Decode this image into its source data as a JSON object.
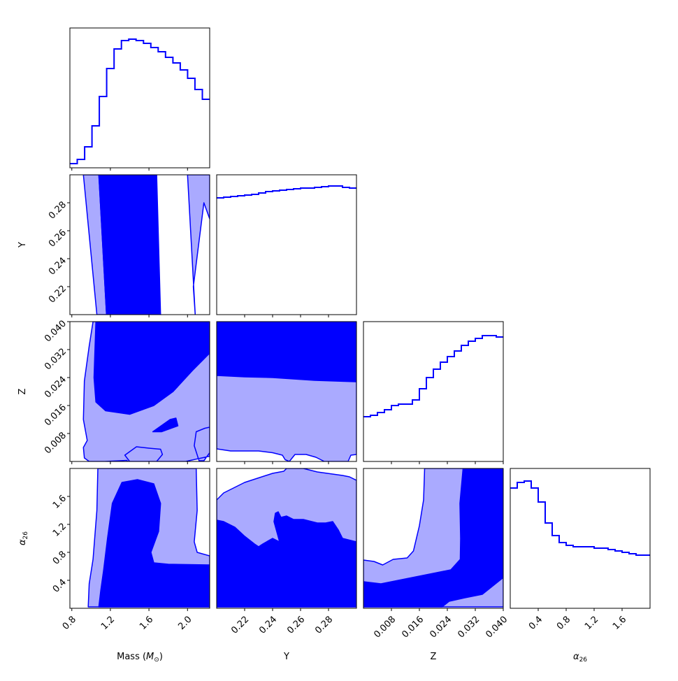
{
  "chart_data": {
    "type": "corner",
    "colors": {
      "line": "#0000ff",
      "inner": "#0000ff",
      "outer": "#aaaaff"
    },
    "parameters": [
      {
        "key": "mass",
        "label": "Mass (M⊙)",
        "range": [
          0.78,
          2.23
        ],
        "ticks": [
          0.8,
          1.2,
          1.6,
          2.0
        ],
        "tick_labels": [
          "0.8",
          "1.2",
          "1.6",
          "2.0"
        ]
      },
      {
        "key": "y",
        "label": "Y",
        "range": [
          0.2,
          0.3
        ],
        "ticks": [
          0.22,
          0.24,
          0.26,
          0.28
        ],
        "tick_labels": [
          "0.22",
          "0.24",
          "0.26",
          "0.28"
        ]
      },
      {
        "key": "z",
        "label": "Z",
        "range": [
          0.0,
          0.04
        ],
        "ticks": [
          0.008,
          0.016,
          0.024,
          0.032,
          0.04
        ],
        "tick_labels": [
          "0.008",
          "0.016",
          "0.024",
          "0.032",
          "0.040"
        ]
      },
      {
        "key": "alpha",
        "label": "α26",
        "range": [
          0.0,
          2.0
        ],
        "ticks": [
          0.4,
          0.8,
          1.2,
          1.6
        ],
        "tick_labels": [
          "0.4",
          "0.8",
          "1.2",
          "1.6"
        ]
      }
    ],
    "histograms": [
      {
        "param": "mass",
        "counts": [
          0.03,
          0.06,
          0.15,
          0.3,
          0.51,
          0.71,
          0.85,
          0.91,
          0.92,
          0.91,
          0.89,
          0.86,
          0.83,
          0.79,
          0.75,
          0.7,
          0.64,
          0.56,
          0.49
        ]
      },
      {
        "param": "y",
        "counts": [
          0.835,
          0.84,
          0.845,
          0.85,
          0.855,
          0.86,
          0.87,
          0.88,
          0.885,
          0.89,
          0.895,
          0.9,
          0.905,
          0.905,
          0.91,
          0.915,
          0.92,
          0.92,
          0.91,
          0.905
        ]
      },
      {
        "param": "z",
        "counts": [
          0.32,
          0.33,
          0.35,
          0.37,
          0.4,
          0.41,
          0.41,
          0.44,
          0.52,
          0.6,
          0.66,
          0.71,
          0.75,
          0.79,
          0.83,
          0.86,
          0.88,
          0.9,
          0.9,
          0.89
        ]
      },
      {
        "param": "alpha",
        "counts": [
          0.86,
          0.9,
          0.91,
          0.86,
          0.76,
          0.61,
          0.52,
          0.47,
          0.45,
          0.44,
          0.44,
          0.44,
          0.43,
          0.43,
          0.42,
          0.41,
          0.4,
          0.39,
          0.38,
          0.38
        ]
      }
    ],
    "contours": [
      {
        "x": "mass",
        "y": "y",
        "outer": [
          [
            [
              0.92,
              0.3
            ],
            [
              1.08,
              0.3
            ],
            [
              1.16,
              0.2
            ],
            [
              1.06,
              0.2
            ]
          ],
          [
            [
              2.0,
              0.3
            ],
            [
              2.23,
              0.3
            ],
            [
              2.23,
              0.2685
            ],
            [
              2.17,
              0.28
            ],
            [
              2.06,
              0.22
            ],
            [
              2.08,
              0.2
            ]
          ]
        ],
        "inner": [
          [
            [
              1.08,
              0.3
            ],
            [
              1.68,
              0.3
            ],
            [
              1.72,
              0.2
            ],
            [
              1.16,
              0.2
            ]
          ]
        ]
      },
      {
        "x": "mass",
        "y": "z",
        "outer": [
          [
            [
              1.02,
              0.04
            ],
            [
              2.23,
              0.04
            ],
            [
              2.23,
              0.0025
            ],
            [
              2.17,
              0.0002
            ],
            [
              2.12,
              0.0002
            ],
            [
              2.07,
              0.0045
            ],
            [
              2.09,
              0.0085
            ],
            [
              2.18,
              0.0095
            ],
            [
              2.23,
              0.0098
            ],
            [
              2.23,
              0.0015
            ],
            [
              1.98,
              0.0
            ],
            [
              1.4,
              0.0
            ],
            [
              1.35,
              0.0018
            ],
            [
              1.47,
              0.0042
            ],
            [
              1.6,
              0.0038
            ],
            [
              1.72,
              0.0035
            ],
            [
              1.74,
              0.002
            ],
            [
              1.68,
              0.0
            ],
            [
              1.38,
              0.0
            ],
            [
              1.37,
              0.0003
            ],
            [
              1.14,
              0.0
            ],
            [
              0.98,
              0.0
            ],
            [
              0.93,
              0.001
            ],
            [
              0.92,
              0.004
            ],
            [
              0.96,
              0.006
            ],
            [
              0.92,
              0.012
            ],
            [
              0.93,
              0.023
            ],
            [
              0.98,
              0.033
            ]
          ]
        ],
        "inner": [
          [
            [
              1.05,
              0.04
            ],
            [
              2.23,
              0.04
            ],
            [
              2.23,
              0.031
            ],
            [
              2.05,
              0.026
            ],
            [
              1.85,
              0.02
            ],
            [
              1.65,
              0.016
            ],
            [
              1.4,
              0.0135
            ],
            [
              1.15,
              0.0145
            ],
            [
              1.05,
              0.017
            ],
            [
              1.03,
              0.024
            ]
          ],
          [
            [
              1.64,
              0.0085
            ],
            [
              1.82,
              0.012
            ],
            [
              1.88,
              0.0124
            ],
            [
              1.9,
              0.0102
            ],
            [
              1.73,
              0.0085
            ]
          ]
        ]
      },
      {
        "x": "mass",
        "y": "alpha",
        "outer": [
          [
            [
              0.97,
              0.02
            ],
            [
              2.23,
              0.02
            ],
            [
              2.23,
              0.75
            ],
            [
              2.1,
              0.8
            ],
            [
              2.07,
              0.95
            ],
            [
              2.1,
              1.4
            ],
            [
              2.09,
              2.0
            ],
            [
              1.07,
              2.0
            ],
            [
              1.06,
              1.4
            ],
            [
              1.02,
              0.7
            ],
            [
              0.98,
              0.35
            ]
          ]
        ],
        "inner": [
          [
            [
              1.08,
              0.02
            ],
            [
              2.23,
              0.02
            ],
            [
              2.23,
              0.62
            ],
            [
              1.8,
              0.63
            ],
            [
              1.65,
              0.65
            ],
            [
              1.62,
              0.8
            ],
            [
              1.7,
              1.1
            ],
            [
              1.72,
              1.5
            ],
            [
              1.65,
              1.78
            ],
            [
              1.48,
              1.84
            ],
            [
              1.32,
              1.8
            ],
            [
              1.22,
              1.5
            ],
            [
              1.17,
              1.0
            ],
            [
              1.13,
              0.55
            ],
            [
              1.1,
              0.25
            ]
          ]
        ]
      },
      {
        "x": "y",
        "y": "z",
        "outer": [
          [
            [
              0.2,
              0.04
            ],
            [
              0.3,
              0.04
            ],
            [
              0.3,
              0.002
            ],
            [
              0.296,
              0.0018
            ],
            [
              0.294,
              0.0
            ],
            [
              0.277,
              0.0
            ],
            [
              0.271,
              0.0012
            ],
            [
              0.264,
              0.002
            ],
            [
              0.256,
              0.002
            ],
            [
              0.252,
              0.0
            ],
            [
              0.249,
              0.0005
            ],
            [
              0.247,
              0.0018
            ],
            [
              0.24,
              0.0025
            ],
            [
              0.23,
              0.003
            ],
            [
              0.21,
              0.003
            ],
            [
              0.2,
              0.0036
            ]
          ]
        ],
        "inner": [
          [
            [
              0.2,
              0.04
            ],
            [
              0.3,
              0.04
            ],
            [
              0.3,
              0.0228
            ],
            [
              0.27,
              0.0232
            ],
            [
              0.24,
              0.024
            ],
            [
              0.22,
              0.0242
            ],
            [
              0.2,
              0.0246
            ]
          ]
        ]
      },
      {
        "x": "y",
        "y": "alpha",
        "outer": [
          [
            [
              0.2,
              0.02
            ],
            [
              0.3,
              0.02
            ],
            [
              0.3,
              1.83
            ],
            [
              0.295,
              1.88
            ],
            [
              0.29,
              1.9
            ],
            [
              0.272,
              1.95
            ],
            [
              0.262,
              2.0
            ],
            [
              0.25,
              2.0
            ],
            [
              0.248,
              1.96
            ],
            [
              0.24,
              1.93
            ],
            [
              0.22,
              1.8
            ],
            [
              0.205,
              1.65
            ],
            [
              0.2,
              1.55
            ]
          ]
        ],
        "inner": [
          [
            [
              0.2,
              0.02
            ],
            [
              0.3,
              0.02
            ],
            [
              0.3,
              0.95
            ],
            [
              0.29,
              1.0
            ],
            [
              0.287,
              1.12
            ],
            [
              0.283,
              1.24
            ],
            [
              0.278,
              1.22
            ],
            [
              0.272,
              1.22
            ],
            [
              0.262,
              1.27
            ],
            [
              0.255,
              1.27
            ],
            [
              0.25,
              1.32
            ],
            [
              0.246,
              1.3
            ],
            [
              0.244,
              1.38
            ],
            [
              0.242,
              1.36
            ],
            [
              0.241,
              1.24
            ],
            [
              0.245,
              0.95
            ],
            [
              0.24,
              1.0
            ],
            [
              0.233,
              0.92
            ],
            [
              0.23,
              0.88
            ],
            [
              0.227,
              0.92
            ],
            [
              0.22,
              1.03
            ],
            [
              0.213,
              1.16
            ],
            [
              0.205,
              1.24
            ],
            [
              0.2,
              1.26
            ]
          ]
        ]
      },
      {
        "x": "z",
        "y": "alpha",
        "outer": [
          [
            [
              0.0,
              0.02
            ],
            [
              0.04,
              0.02
            ],
            [
              0.04,
              2.0
            ],
            [
              0.0175,
              2.0
            ],
            [
              0.0172,
              1.55
            ],
            [
              0.016,
              1.18
            ],
            [
              0.0143,
              0.82
            ],
            [
              0.0125,
              0.72
            ],
            [
              0.0085,
              0.7
            ],
            [
              0.0055,
              0.62
            ],
            [
              0.003,
              0.67
            ],
            [
              0.0,
              0.69
            ]
          ]
        ],
        "inner": [
          [
            [
              0.0,
              0.02
            ],
            [
              0.0225,
              0.02
            ],
            [
              0.0245,
              0.1
            ],
            [
              0.029,
              0.15
            ],
            [
              0.034,
              0.2
            ],
            [
              0.04,
              0.44
            ],
            [
              0.04,
              2.0
            ],
            [
              0.0285,
              2.0
            ],
            [
              0.0276,
              1.5
            ],
            [
              0.0278,
              1.0
            ],
            [
              0.0277,
              0.7
            ],
            [
              0.025,
              0.55
            ],
            [
              0.02,
              0.5
            ],
            [
              0.015,
              0.45
            ],
            [
              0.01,
              0.4
            ],
            [
              0.005,
              0.35
            ],
            [
              0.0,
              0.38
            ]
          ]
        ]
      }
    ]
  }
}
